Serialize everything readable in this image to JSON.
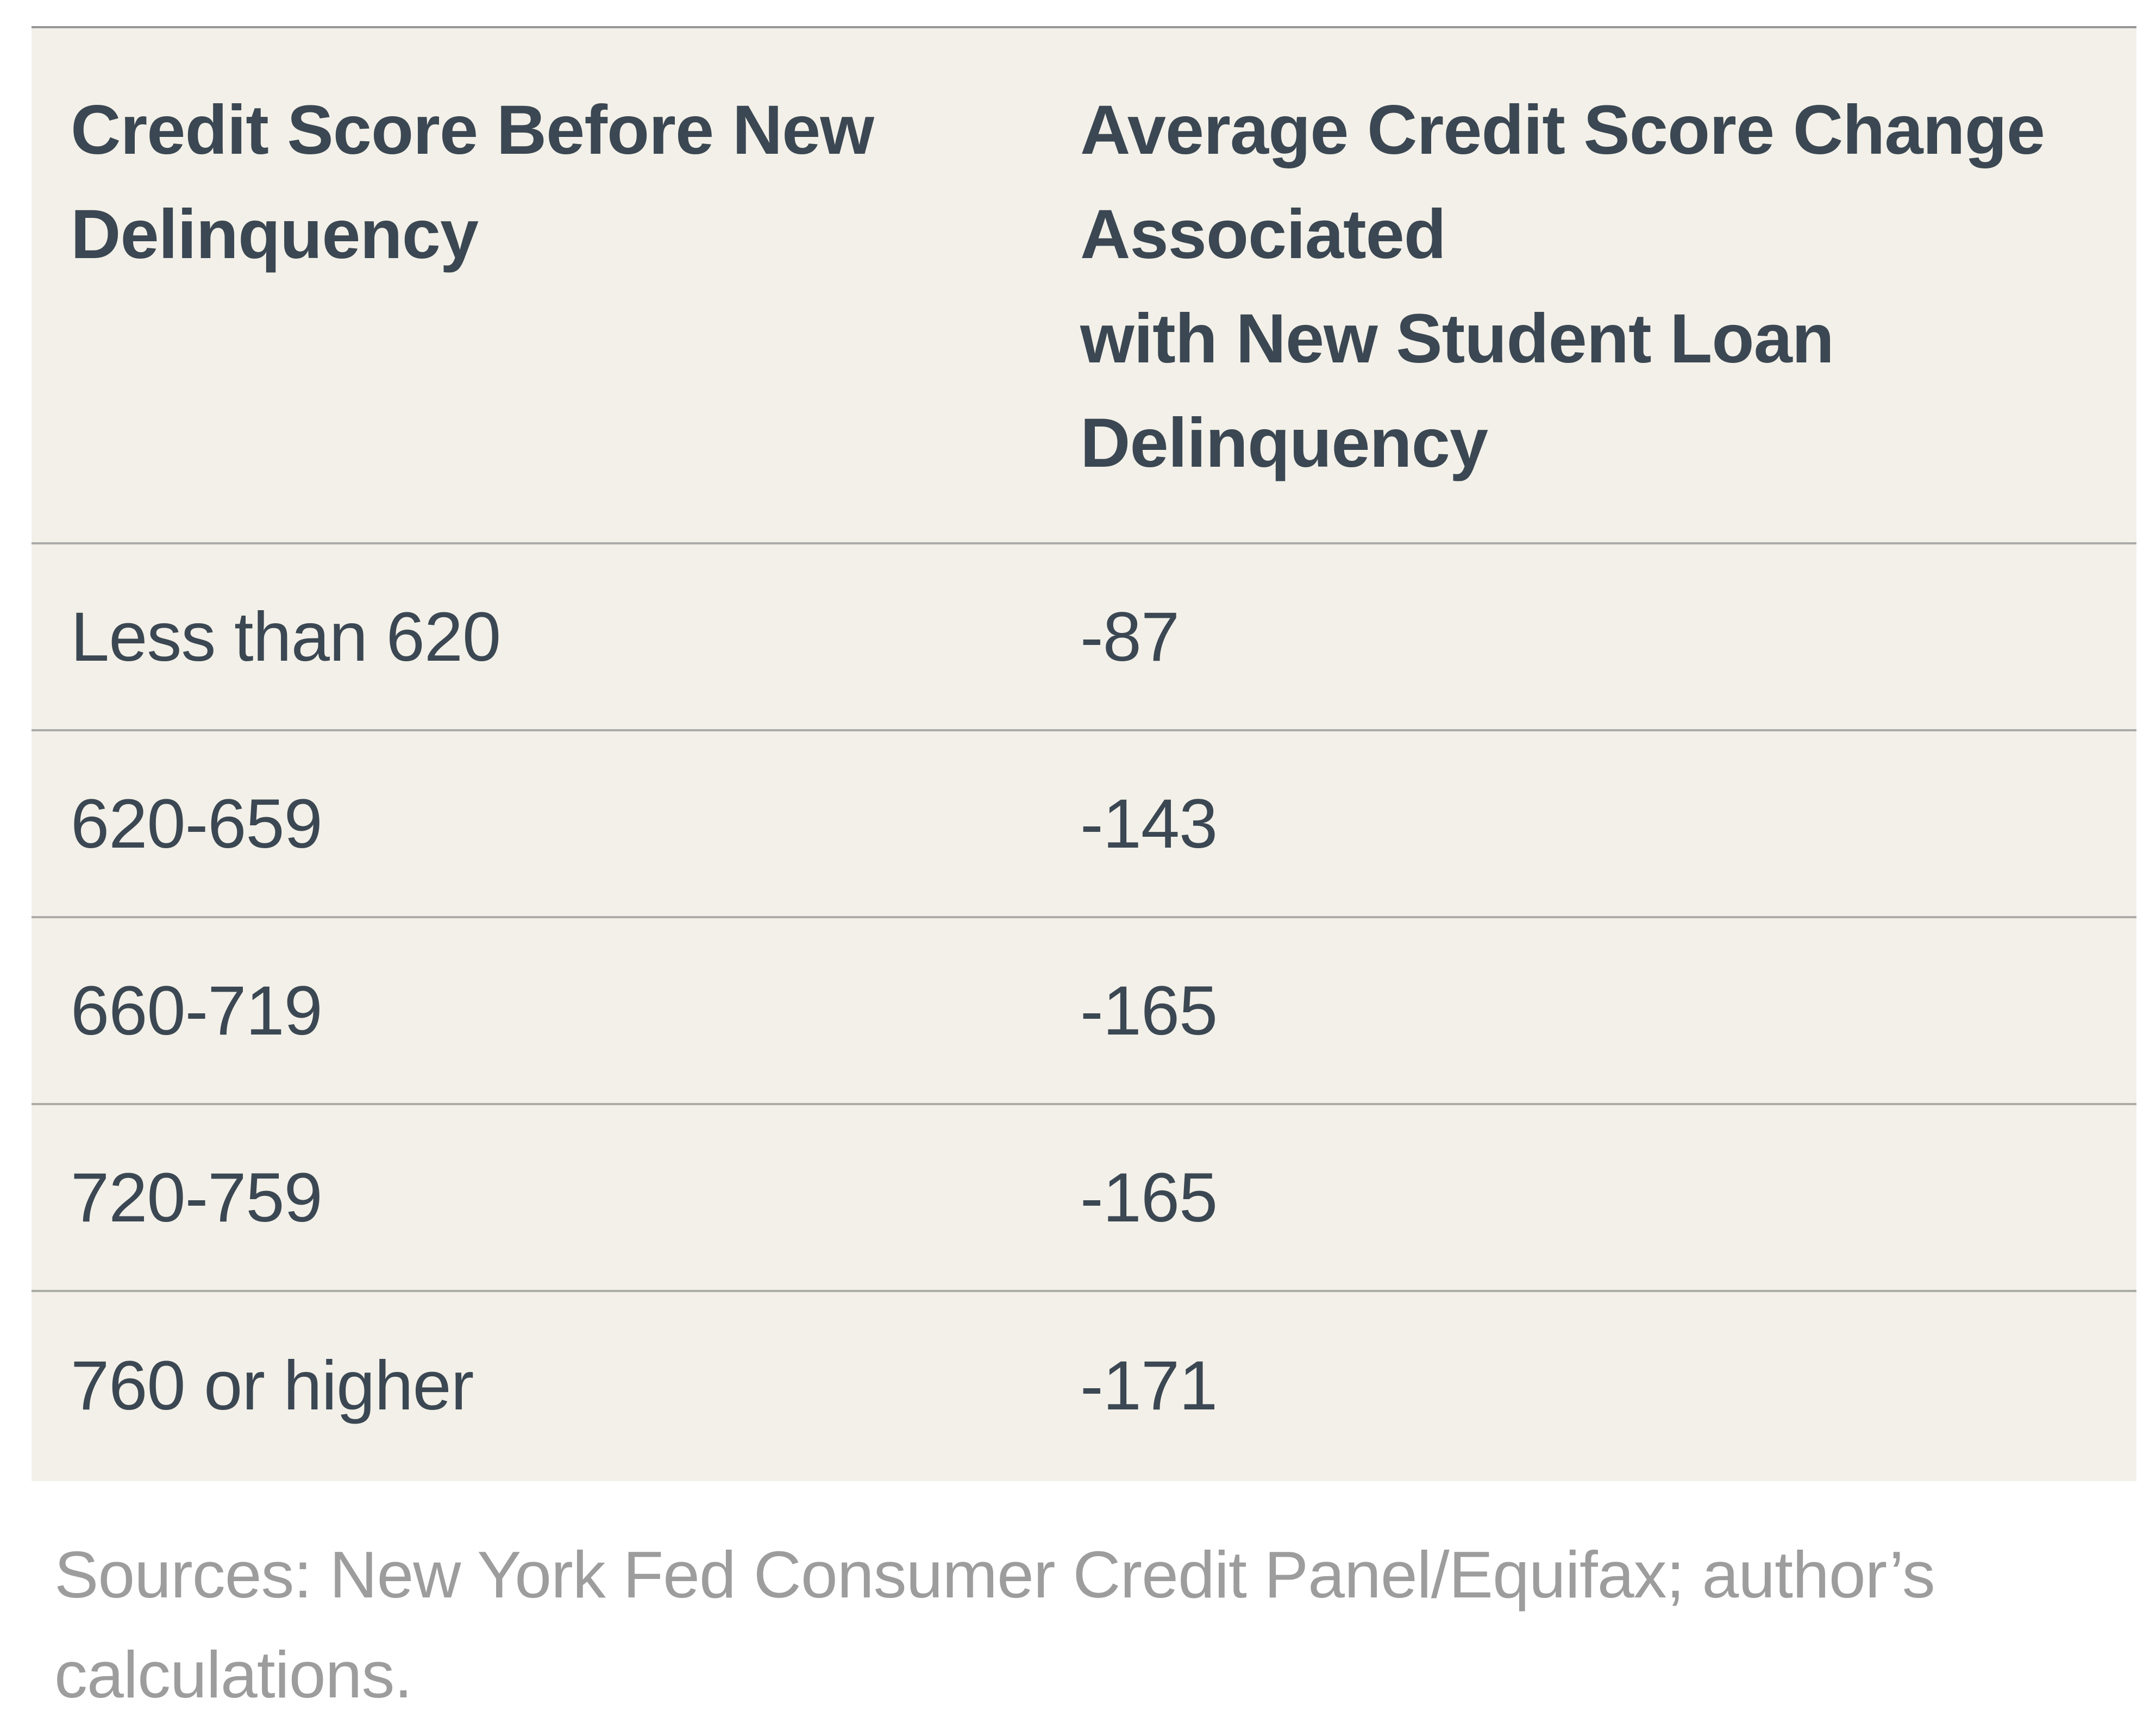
{
  "table": {
    "columns": [
      {
        "header": "Credit Score Before New\nDelinquency"
      },
      {
        "header": "Average Credit Score Change\nAssociated\nwith New Student Loan\nDelinquency"
      }
    ],
    "rows": [
      {
        "label": "Less than 620",
        "value": "-87"
      },
      {
        "label": "620-659",
        "value": "-143"
      },
      {
        "label": "660-719",
        "value": "-165"
      },
      {
        "label": "720-759",
        "value": "-165"
      },
      {
        "label": "760 or higher",
        "value": "-171"
      }
    ],
    "source_note": "Sources: New York Fed Consumer Credit Panel/Equifax; author’s\ncalculations."
  },
  "colors": {
    "page_bg": "#ffffff",
    "panel_bg": "#f2f0e8",
    "text_dark": "#3b4752",
    "divider": "#ababa8",
    "top_border": "#97979a",
    "source_text": "#9d9d9d"
  },
  "chart_data": {
    "type": "table",
    "title": "",
    "columns": [
      "Credit Score Before New Delinquency",
      "Average Credit Score Change Associated with New Student Loan Delinquency"
    ],
    "categories": [
      "Less than 620",
      "620-659",
      "660-719",
      "720-759",
      "760 or higher"
    ],
    "values": [
      -87,
      -143,
      -165,
      -165,
      -171
    ],
    "annotations": "Sources: New York Fed Consumer Credit Panel/Equifax; author’s calculations.",
    "layout_hints": "two-column table, cream panel, header bold, thin gray row dividers, grid on"
  }
}
